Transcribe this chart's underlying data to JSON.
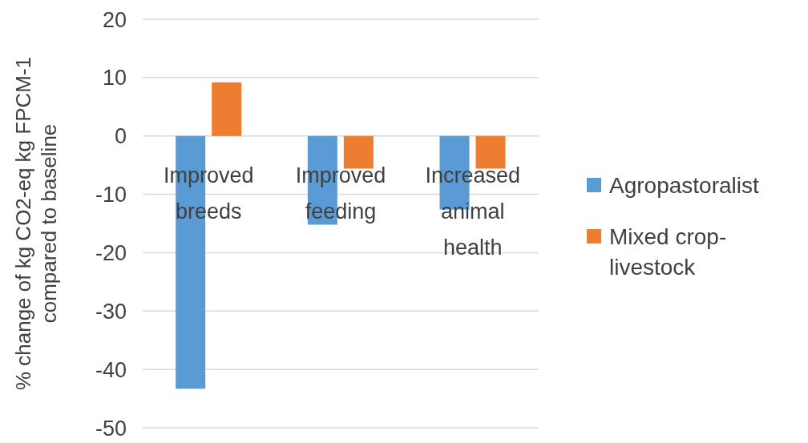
{
  "chart_data": {
    "type": "bar",
    "ylabel": "% change of kg CO2-eq kg FPCM-1 compared to baseline",
    "categories": [
      "Improved breeds",
      "Improved feeding",
      "Increased animal health"
    ],
    "series": [
      {
        "name": "Agropastoralist",
        "color": "#5b9bd5",
        "values": [
          -43.3,
          -15.2,
          -12.6
        ]
      },
      {
        "name": "Mixed crop-livestock",
        "color": "#ed7d31",
        "values": [
          9.2,
          -5.6,
          -5.6
        ]
      }
    ],
    "ylim": [
      -50,
      20
    ],
    "yticks": [
      20,
      10,
      0,
      -10,
      -20,
      -30,
      -40,
      -50
    ],
    "grid": "y",
    "legend": "right"
  }
}
